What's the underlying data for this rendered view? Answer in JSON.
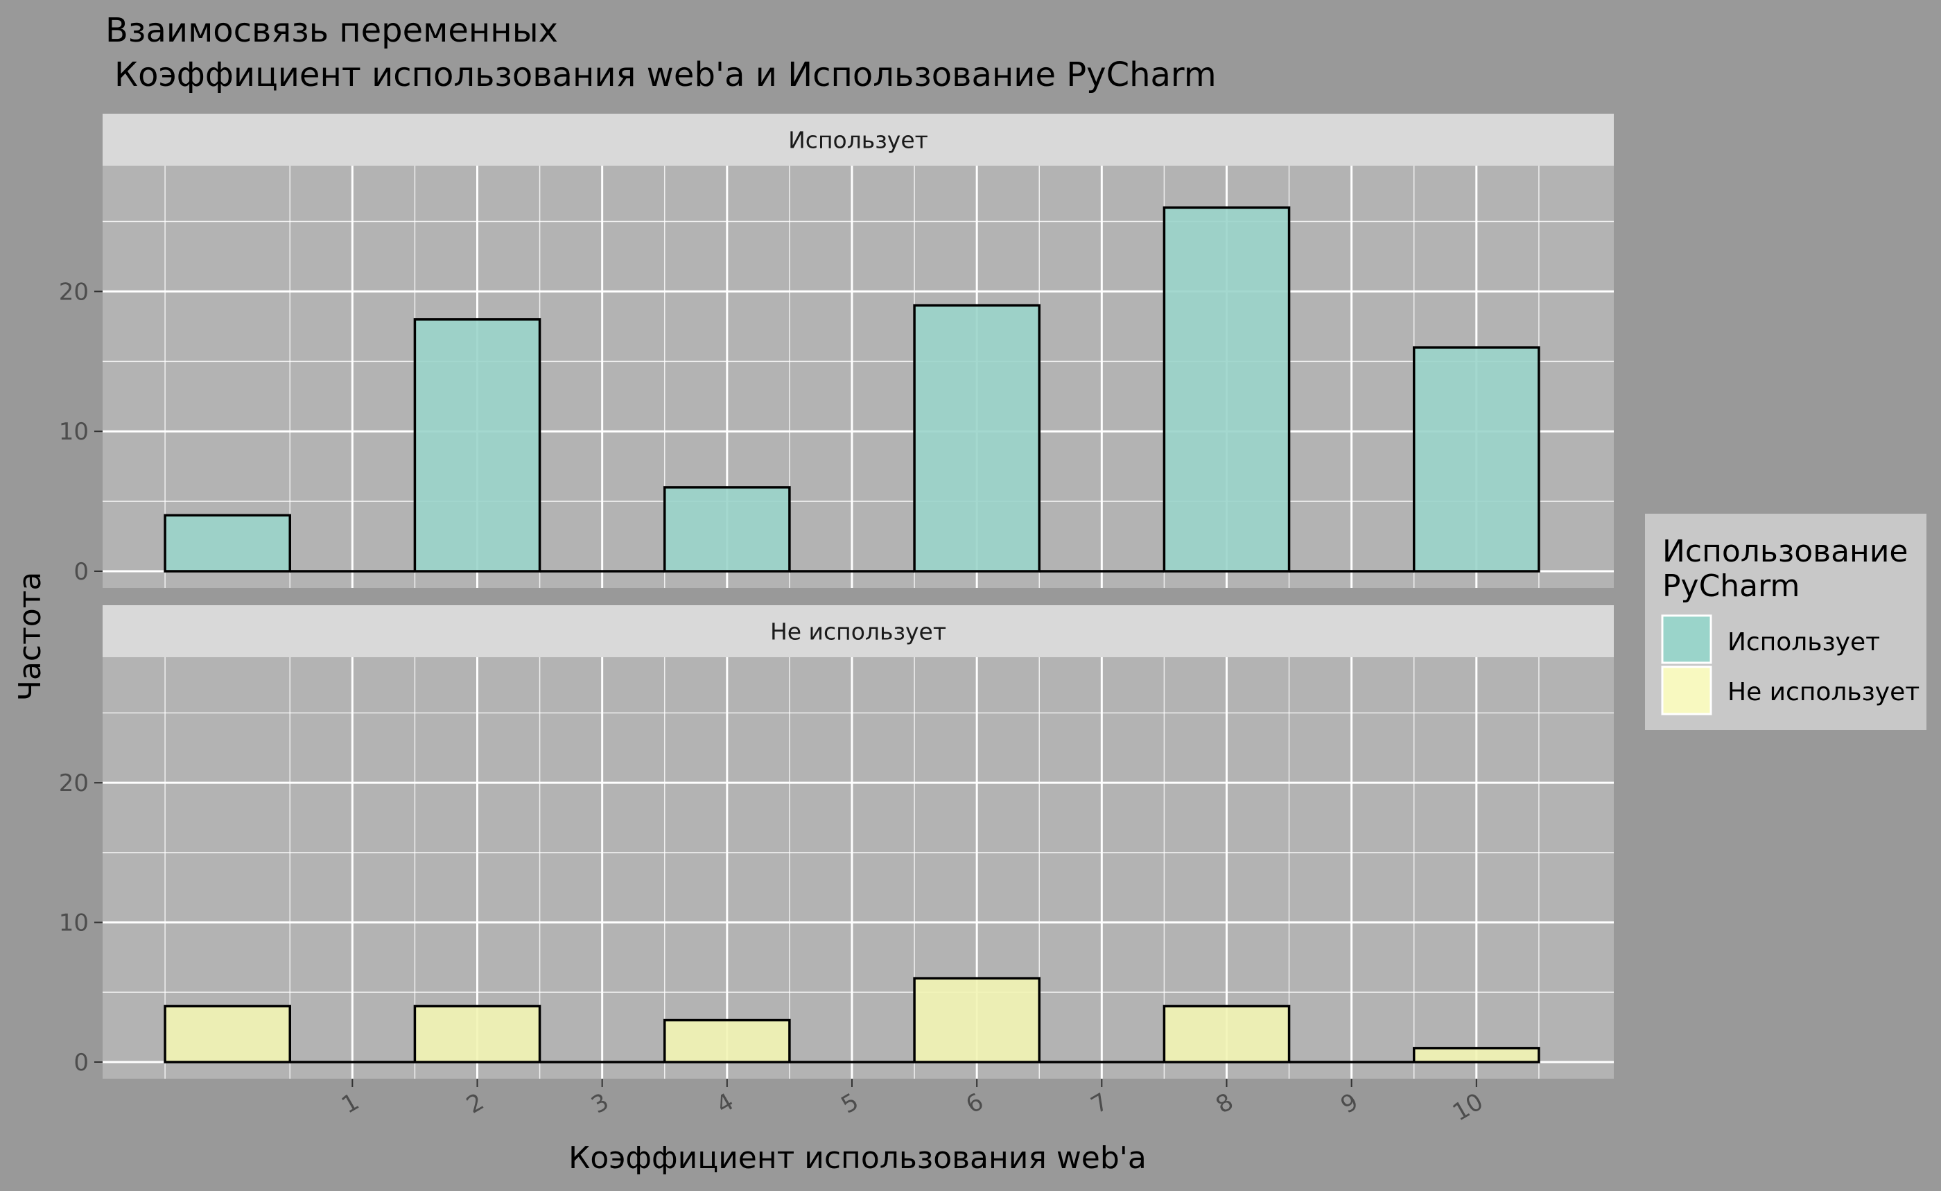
{
  "chart_data": {
    "type": "bar",
    "title": [
      "Взаимосвязь переменных",
      "Коэффициент использования web'a и Использование PyCharm"
    ],
    "xlabel": "Коэффициент использования web'a",
    "ylabel": "Частота",
    "x_ticks": [
      "1",
      "2",
      "3",
      "4",
      "5",
      "6",
      "7",
      "8",
      "9",
      "10"
    ],
    "y_ticks": [
      "0",
      "10",
      "20"
    ],
    "ylim": [
      0,
      28
    ],
    "grid": true,
    "legend": {
      "title": [
        "Использование",
        "PyCharm"
      ],
      "position": "right",
      "entries": [
        {
          "label": "Использует",
          "color": "#9ad4ca"
        },
        {
          "label": "Не использует",
          "color": "#f2f4b4"
        }
      ]
    },
    "facets": [
      {
        "label": "Использует",
        "color": "#9ad4ca",
        "bars": [
          {
            "x": 0,
            "value": 4
          },
          {
            "x": 2,
            "value": 18
          },
          {
            "x": 4,
            "value": 6
          },
          {
            "x": 6,
            "value": 19
          },
          {
            "x": 8,
            "value": 26
          },
          {
            "x": 10,
            "value": 16
          }
        ]
      },
      {
        "label": "Не использует",
        "color": "#f2f4b4",
        "bars": [
          {
            "x": 0,
            "value": 4
          },
          {
            "x": 2,
            "value": 4
          },
          {
            "x": 4,
            "value": 3
          },
          {
            "x": 6,
            "value": 6
          },
          {
            "x": 8,
            "value": 4
          },
          {
            "x": 10,
            "value": 1
          }
        ]
      }
    ]
  }
}
